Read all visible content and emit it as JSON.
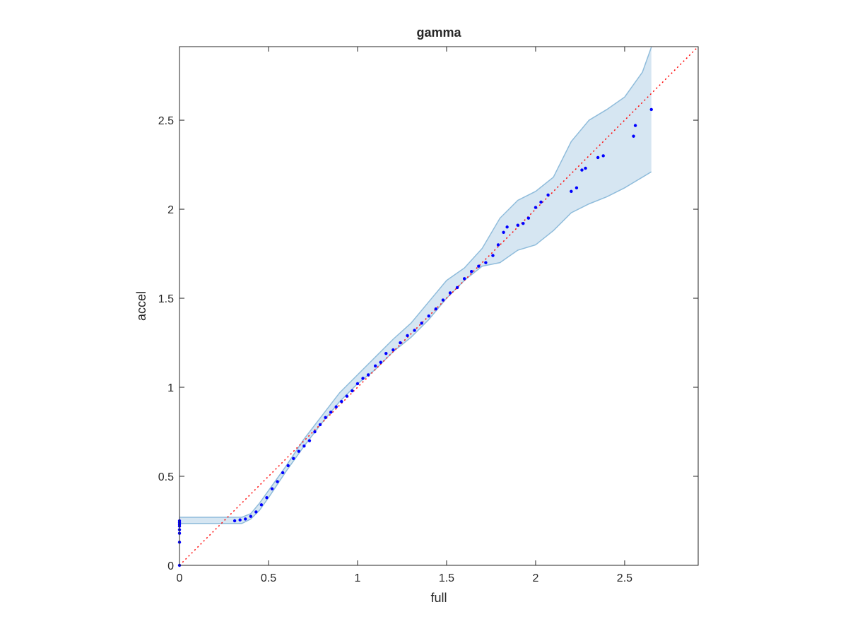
{
  "chart_data": {
    "type": "scatter",
    "title": "gamma",
    "xlabel": "full",
    "ylabel": "accel",
    "xlim": [
      0,
      2.913
    ],
    "ylim": [
      0,
      2.913
    ],
    "xticks": [
      0,
      0.5,
      1,
      1.5,
      2,
      2.5
    ],
    "yticks": [
      0,
      0.5,
      1,
      1.5,
      2,
      2.5
    ],
    "points": {
      "color": "#0000ff",
      "x": [
        0,
        0,
        0,
        0,
        0,
        0,
        0,
        0,
        0.31,
        0.34,
        0.37,
        0.4,
        0.43,
        0.46,
        0.49,
        0.52,
        0.55,
        0.58,
        0.61,
        0.64,
        0.67,
        0.7,
        0.73,
        0.76,
        0.79,
        0.82,
        0.85,
        0.88,
        0.91,
        0.94,
        0.97,
        1.0,
        1.03,
        1.06,
        1.1,
        1.13,
        1.16,
        1.2,
        1.24,
        1.28,
        1.32,
        1.36,
        1.4,
        1.44,
        1.48,
        1.52,
        1.56,
        1.6,
        1.64,
        1.68,
        1.72,
        1.76,
        1.79,
        1.82,
        1.84,
        1.9,
        1.93,
        1.96,
        2.0,
        2.03,
        2.07,
        2.2,
        2.23,
        2.26,
        2.28,
        2.35,
        2.38,
        2.55,
        2.56,
        2.65
      ],
      "y": [
        0,
        0.13,
        0.18,
        0.2,
        0.22,
        0.23,
        0.24,
        0.25,
        0.25,
        0.255,
        0.26,
        0.275,
        0.3,
        0.34,
        0.38,
        0.43,
        0.47,
        0.52,
        0.56,
        0.6,
        0.64,
        0.67,
        0.7,
        0.75,
        0.79,
        0.83,
        0.86,
        0.89,
        0.92,
        0.95,
        0.98,
        1.02,
        1.05,
        1.07,
        1.12,
        1.14,
        1.19,
        1.21,
        1.25,
        1.29,
        1.32,
        1.36,
        1.4,
        1.44,
        1.49,
        1.53,
        1.56,
        1.61,
        1.65,
        1.68,
        1.7,
        1.74,
        1.8,
        1.87,
        1.9,
        1.91,
        1.92,
        1.95,
        2.01,
        2.04,
        2.08,
        2.1,
        2.12,
        2.22,
        2.23,
        2.29,
        2.3,
        2.41,
        2.47,
        2.56
      ]
    },
    "band": {
      "fill": "#d6e6f2",
      "edge": "#8fbcdb",
      "x": [
        0,
        0.3,
        0.35,
        0.4,
        0.45,
        0.5,
        0.6,
        0.7,
        0.8,
        0.9,
        1.0,
        1.1,
        1.2,
        1.3,
        1.4,
        1.5,
        1.6,
        1.7,
        1.8,
        1.9,
        2.0,
        2.1,
        2.2,
        2.3,
        2.4,
        2.5,
        2.6,
        2.65
      ],
      "upper": [
        0.27,
        0.27,
        0.27,
        0.29,
        0.35,
        0.42,
        0.56,
        0.71,
        0.84,
        0.97,
        1.07,
        1.17,
        1.27,
        1.36,
        1.48,
        1.6,
        1.67,
        1.78,
        1.95,
        2.05,
        2.1,
        2.18,
        2.38,
        2.5,
        2.56,
        2.63,
        2.77,
        2.91
      ],
      "lower": [
        0.235,
        0.235,
        0.235,
        0.26,
        0.31,
        0.38,
        0.53,
        0.67,
        0.8,
        0.92,
        1.02,
        1.1,
        1.2,
        1.28,
        1.38,
        1.5,
        1.6,
        1.68,
        1.7,
        1.77,
        1.8,
        1.88,
        1.98,
        2.03,
        2.07,
        2.12,
        2.18,
        2.21
      ]
    },
    "diagonal": {
      "color": "#ff0000",
      "x": [
        0,
        2.913
      ],
      "y": [
        0,
        2.913
      ]
    }
  }
}
